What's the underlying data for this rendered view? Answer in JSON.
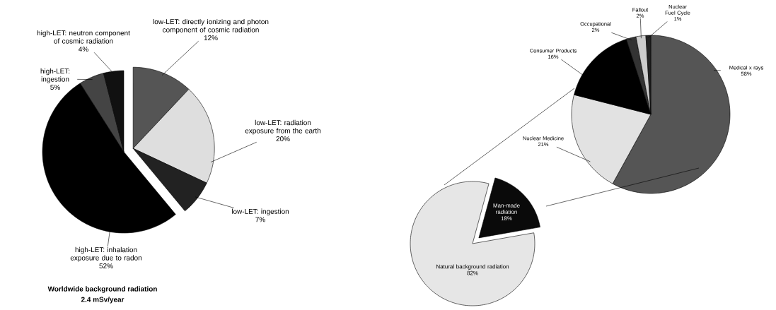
{
  "chart_data": [
    {
      "type": "pie",
      "title": "Worldwide background radiation",
      "subtitle": "2.4 mSv/year",
      "categories": [
        "low-LET: directly ionizing and photon component of cosmic radiation",
        "low-LET: radiation exposure from the earth",
        "low-LET: ingestion",
        "high-LET: inhalation exposure due to radon",
        "high-LET: ingestion",
        "high-LET: neutron component of cosmic radiation"
      ],
      "values": [
        12,
        20,
        7,
        52,
        5,
        4
      ],
      "value_labels": [
        "12%",
        "20%",
        "7%",
        "52%",
        "5%",
        "4%"
      ],
      "colors": [
        "#555555",
        "#dedede",
        "#222222",
        "#000000",
        "#444444",
        "#111111"
      ]
    },
    {
      "type": "pie",
      "categories": [
        "Natural background radiation",
        "Man-made radiation"
      ],
      "values": [
        82,
        18
      ],
      "value_labels": [
        "82%",
        "18%"
      ],
      "colors": [
        "#e6e6e6",
        "#0a0a0a"
      ]
    },
    {
      "type": "pie",
      "categories": [
        "Medical x rays",
        "Nuclear Medicine",
        "Consumer Products",
        "Occupational",
        "Fallout",
        "Nuclear Fuel Cycle"
      ],
      "values": [
        58,
        21,
        16,
        2,
        2,
        1
      ],
      "value_labels": [
        "58%",
        "21%",
        "16%",
        "2%",
        "2%",
        "1%"
      ],
      "colors": [
        "#555555",
        "#e2e2e2",
        "#000000",
        "#333333",
        "#cccccc",
        "#222222"
      ]
    }
  ]
}
